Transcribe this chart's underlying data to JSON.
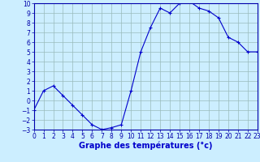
{
  "x": [
    0,
    1,
    2,
    3,
    4,
    5,
    6,
    7,
    8,
    9,
    10,
    11,
    12,
    13,
    14,
    15,
    16,
    17,
    18,
    19,
    20,
    21,
    22,
    23
  ],
  "y": [
    -1,
    1,
    1.5,
    0.5,
    -0.5,
    -1.5,
    -2.5,
    -3,
    -2.8,
    -2.5,
    1,
    5,
    7.5,
    9.5,
    9,
    10,
    10.2,
    9.5,
    9.2,
    8.5,
    6.5,
    6,
    5,
    5
  ],
  "line_color": "#0000cc",
  "marker": "+",
  "bg_color": "#cceeff",
  "grid_color": "#99bbbb",
  "axis_color": "#0000aa",
  "xlabel": "Graphe des températures (°c)",
  "xlabel_color": "#0000cc",
  "ylim": [
    -3,
    10
  ],
  "xlim": [
    0,
    23
  ],
  "yticks": [
    -3,
    -2,
    -1,
    0,
    1,
    2,
    3,
    4,
    5,
    6,
    7,
    8,
    9,
    10
  ],
  "xticks": [
    0,
    1,
    2,
    3,
    4,
    5,
    6,
    7,
    8,
    9,
    10,
    11,
    12,
    13,
    14,
    15,
    16,
    17,
    18,
    19,
    20,
    21,
    22,
    23
  ],
  "tick_fontsize": 5.5,
  "label_fontsize": 7,
  "label_fontweight": "bold"
}
